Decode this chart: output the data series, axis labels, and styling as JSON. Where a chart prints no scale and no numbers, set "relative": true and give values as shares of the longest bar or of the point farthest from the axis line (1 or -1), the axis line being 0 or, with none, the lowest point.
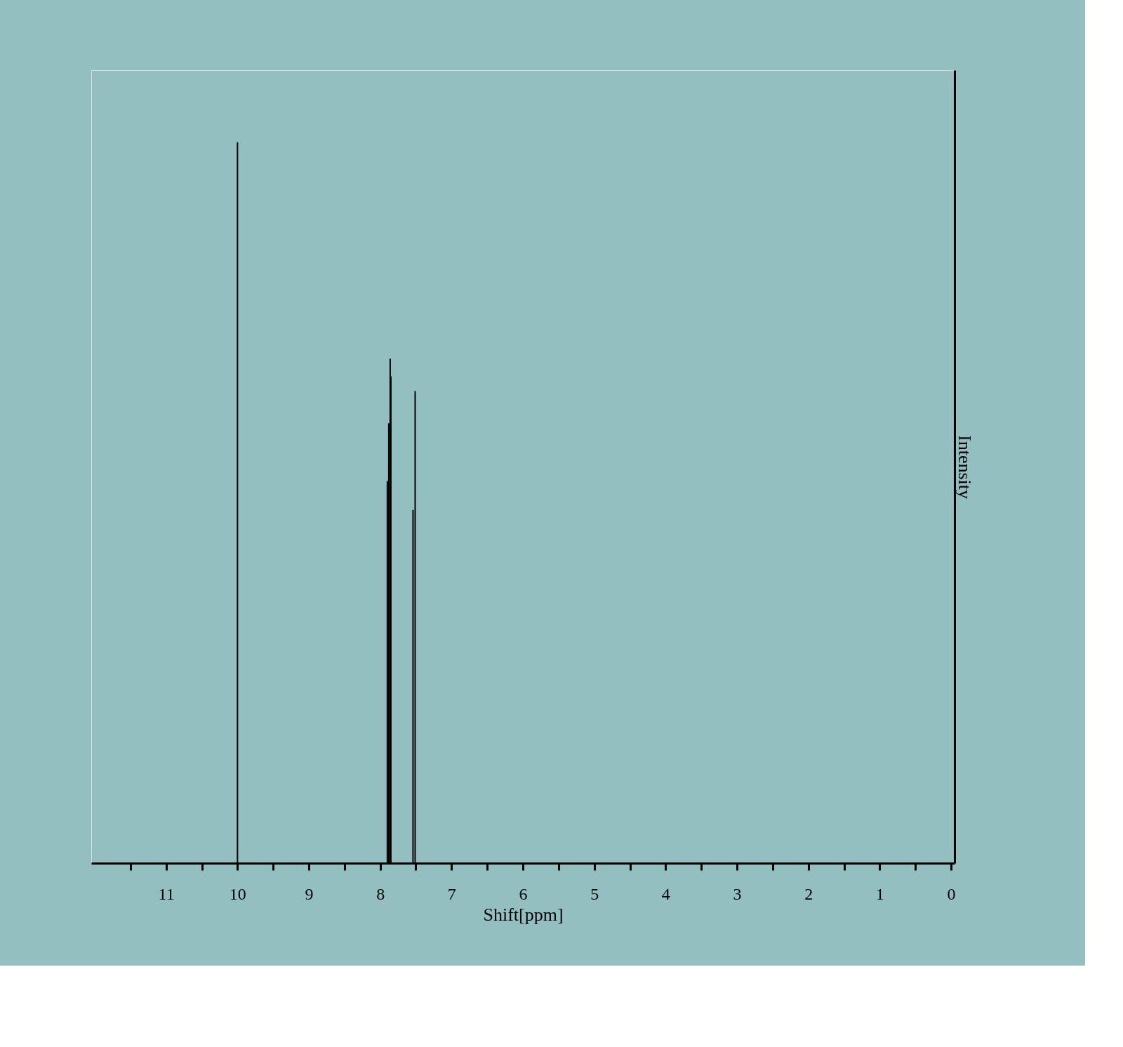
{
  "chart_data": {
    "type": "bar",
    "relative": true,
    "xlabel": "Shift[ppm]",
    "ylabel": "Intensity",
    "xlim": [
      12,
      0
    ],
    "xticks": [
      {
        "value": 11.5,
        "label": null
      },
      11,
      {
        "value": 10.5,
        "label": null
      },
      10,
      {
        "value": 9.5,
        "label": null
      },
      9,
      {
        "value": 8.5,
        "label": null
      },
      8,
      {
        "value": 7.5,
        "label": null
      },
      7,
      {
        "value": 6.5,
        "label": null
      },
      6,
      {
        "value": 5.5,
        "label": null
      },
      5,
      {
        "value": 4.5,
        "label": null
      },
      4,
      {
        "value": 3.5,
        "label": null
      },
      3,
      {
        "value": 2.5,
        "label": null
      },
      2,
      {
        "value": 1.5,
        "label": null
      },
      1,
      {
        "value": 0.5,
        "label": null
      },
      0
    ],
    "x": [
      10.0,
      7.9,
      7.88,
      7.86,
      7.85,
      7.54,
      7.51
    ],
    "series": [
      {
        "color": "#000000",
        "values": [
          1.0,
          0.53,
          0.61,
          0.7,
          0.675,
          0.49,
          0.655
        ]
      }
    ],
    "grid": false
  }
}
